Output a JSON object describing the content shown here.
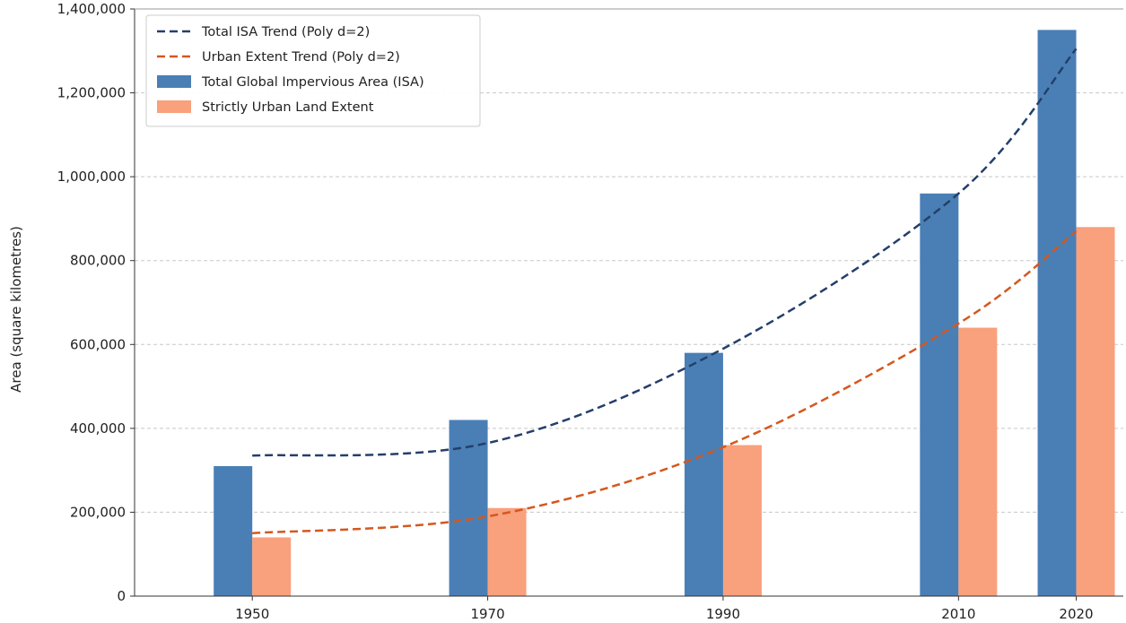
{
  "chart_data": {
    "type": "bar",
    "title": "",
    "xlabel": "",
    "ylabel": "Area (square kilometres)",
    "ylim": [
      0,
      1400000
    ],
    "yticks": [
      0,
      200000,
      400000,
      600000,
      800000,
      1000000,
      1200000,
      1400000
    ],
    "ytick_labels": [
      "0",
      "200,000",
      "400,000",
      "600,000",
      "800,000",
      "1,000,000",
      "1,200,000",
      "1,400,000"
    ],
    "xlim": [
      1940,
      2024
    ],
    "categories": [
      "1950",
      "1970",
      "1990",
      "2010",
      "2020"
    ],
    "x": [
      1950,
      1970,
      1990,
      2010,
      2020
    ],
    "grid": "horizontal dashed",
    "legend_position": "top-left",
    "series": [
      {
        "name": "Total Global Impervious Area (ISA)",
        "kind": "bar",
        "color": "#4a7fb5",
        "values": [
          310000,
          420000,
          580000,
          960000,
          1350000
        ]
      },
      {
        "name": "Strictly Urban Land Extent",
        "kind": "bar",
        "color": "#f9a07c",
        "values": [
          140000,
          210000,
          360000,
          640000,
          880000
        ]
      }
    ],
    "trends": [
      {
        "name": "Total ISA Trend (Poly d=2)",
        "kind": "dashed-line",
        "color": "#243f6b",
        "points": [
          [
            1950,
            335000
          ],
          [
            1970,
            365000
          ],
          [
            1990,
            590000
          ],
          [
            2010,
            960000
          ],
          [
            2020,
            1305000
          ]
        ]
      },
      {
        "name": "Urban Extent Trend (Poly d=2)",
        "kind": "dashed-line",
        "color": "#d4581e",
        "points": [
          [
            1950,
            150000
          ],
          [
            1970,
            190000
          ],
          [
            1990,
            355000
          ],
          [
            2010,
            650000
          ],
          [
            2020,
            870000
          ]
        ]
      }
    ]
  }
}
